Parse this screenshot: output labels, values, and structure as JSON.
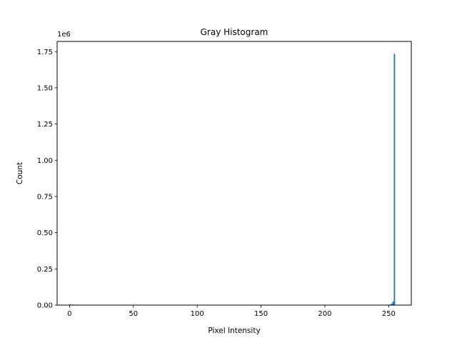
{
  "chart_data": {
    "type": "bar",
    "title": "Gray Histogram",
    "xlabel": "Pixel Intensity",
    "ylabel": "Count",
    "y_multiplier_label": "1e6",
    "xlim": [
      -9.7,
      267.7
    ],
    "ylim": [
      0,
      1820000
    ],
    "grid": false,
    "bar_color": "#1f77b4",
    "x_ticks": [
      {
        "value": 0,
        "label": "0"
      },
      {
        "value": 50,
        "label": "50"
      },
      {
        "value": 100,
        "label": "100"
      },
      {
        "value": 150,
        "label": "150"
      },
      {
        "value": 200,
        "label": "200"
      },
      {
        "value": 250,
        "label": "250"
      }
    ],
    "y_ticks": [
      {
        "value": 0,
        "label": "0.00"
      },
      {
        "value": 250000,
        "label": "0.25"
      },
      {
        "value": 500000,
        "label": "0.50"
      },
      {
        "value": 750000,
        "label": "0.75"
      },
      {
        "value": 1000000,
        "label": "1.00"
      },
      {
        "value": 1250000,
        "label": "1.25"
      },
      {
        "value": 1500000,
        "label": "1.50"
      },
      {
        "value": 1750000,
        "label": "1.75"
      }
    ],
    "bins": [
      {
        "x": 0,
        "value": 6000
      },
      {
        "x": 1,
        "value": 2500
      },
      {
        "x": 2,
        "value": 1500
      },
      {
        "x": 3,
        "value": 1000
      },
      {
        "x": 4,
        "value": 800
      },
      {
        "x": 5,
        "value": 600
      },
      {
        "x": 248,
        "value": 1500
      },
      {
        "x": 249,
        "value": 2000
      },
      {
        "x": 250,
        "value": 3000
      },
      {
        "x": 251,
        "value": 5000
      },
      {
        "x": 252,
        "value": 12000
      },
      {
        "x": 253,
        "value": 25000
      },
      {
        "x": 254,
        "value": 1735000
      }
    ]
  }
}
